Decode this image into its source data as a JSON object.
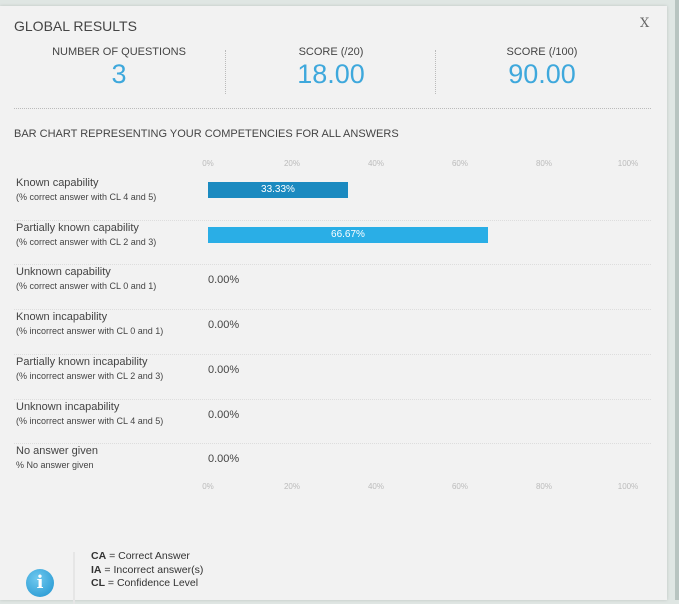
{
  "header": {
    "title": "GLOBAL RESULTS",
    "close_label": "X"
  },
  "stats": [
    {
      "label": "NUMBER OF QUESTIONS",
      "value": "3"
    },
    {
      "label": "SCORE (/20)",
      "value": "18.00"
    },
    {
      "label": "SCORE (/100)",
      "value": "90.00"
    }
  ],
  "chart_title": "BAR CHART REPRESENTING YOUR COMPETENCIES FOR ALL ANSWERS",
  "colors": {
    "accent": "#3ea8dc",
    "bar_dark": "#1b8ac0",
    "bar_light": "#2aaee6"
  },
  "chart_data": {
    "type": "bar",
    "orientation": "horizontal",
    "title": "BAR CHART REPRESENTING YOUR COMPETENCIES FOR ALL ANSWERS",
    "xlim": [
      0,
      100
    ],
    "ticks": [
      "0%",
      "20%",
      "40%",
      "60%",
      "80%",
      "100%"
    ],
    "tick_values": [
      0,
      20,
      40,
      60,
      80,
      100
    ],
    "categories": [
      {
        "label": "Known capability",
        "sub": "(% correct answer with CL 4 and 5)",
        "value": 33.33,
        "display": "33.33%"
      },
      {
        "label": "Partially known capability",
        "sub": "(% correct answer with CL 2 and 3)",
        "value": 66.67,
        "display": "66.67%"
      },
      {
        "label": "Unknown capability",
        "sub": "(% correct answer with CL 0 and 1)",
        "value": 0,
        "display": "0.00%"
      },
      {
        "label": "Known incapability",
        "sub": "(% incorrect answer with CL 0 and 1)",
        "value": 0,
        "display": "0.00%"
      },
      {
        "label": "Partially known incapability",
        "sub": "(% incorrect answer with CL 2 and 3)",
        "value": 0,
        "display": "0.00%"
      },
      {
        "label": "Unknown incapability",
        "sub": "(% incorrect answer with CL 4 and 5)",
        "value": 0,
        "display": "0.00%"
      },
      {
        "label": "No answer given",
        "sub": "% No answer given",
        "value": 0,
        "display": "0.00%"
      }
    ]
  },
  "legend": [
    {
      "abbr": "CA",
      "text": " = Correct Answer"
    },
    {
      "abbr": "IA",
      "text": " = Incorrect answer(s)"
    },
    {
      "abbr": "CL",
      "text": " = Confidence Level"
    }
  ],
  "info_icon": "info-icon"
}
